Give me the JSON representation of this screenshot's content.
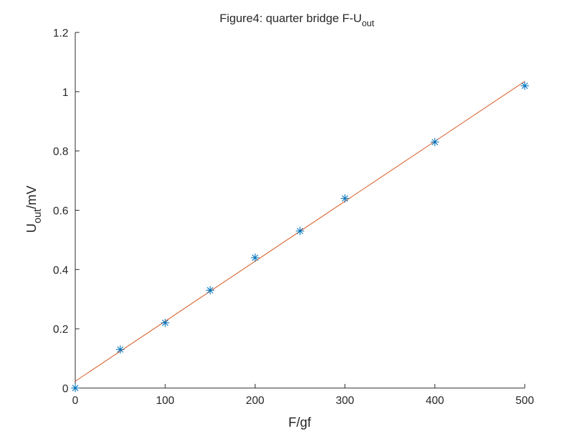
{
  "chart_data": {
    "type": "scatter",
    "title": {
      "main": "Figure4: quarter bridge F-U",
      "sub": "out"
    },
    "xlabel": "F/gf",
    "ylabel": {
      "main": "U",
      "sub": "out",
      "rest": "/mV"
    },
    "xlim": [
      0,
      500
    ],
    "ylim": [
      0,
      1.2
    ],
    "xticks": [
      0,
      100,
      200,
      300,
      400,
      500
    ],
    "yticks": [
      0,
      0.2,
      0.4,
      0.6,
      0.8,
      1,
      1.2
    ],
    "grid": false,
    "series": [
      {
        "kind": "scatter",
        "marker": "asterisk",
        "color": "#0072BD",
        "x": [
          0,
          50,
          100,
          150,
          200,
          250,
          300,
          400,
          500
        ],
        "y": [
          0,
          0.13,
          0.22,
          0.33,
          0.44,
          0.53,
          0.64,
          0.83,
          1.02
        ]
      },
      {
        "kind": "line",
        "color": "#D95319",
        "x": [
          0,
          500
        ],
        "y": [
          0.023,
          1.035
        ]
      }
    ]
  }
}
